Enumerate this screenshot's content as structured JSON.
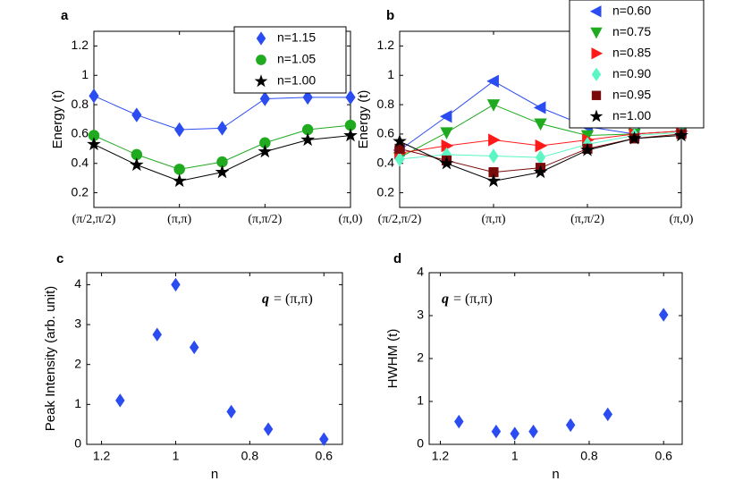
{
  "chart_data": [
    {
      "type": "line",
      "label": "a",
      "ylabel": "Energy (t)",
      "xlim": [
        0,
        6
      ],
      "xticks": [
        {
          "value": 0,
          "label": "(π/2,π/2)"
        },
        {
          "value": 2,
          "label": "(π,π)"
        },
        {
          "value": 4,
          "label": "(π,π/2)"
        },
        {
          "value": 6,
          "label": "(π,0)"
        }
      ],
      "ylim": [
        0.1,
        1.3
      ],
      "yticks": [
        0.2,
        0.4,
        0.6,
        0.8,
        1,
        1.2
      ],
      "x": [
        0,
        1,
        2,
        3,
        4,
        5,
        6
      ],
      "legend": "upper right",
      "series": [
        {
          "name": "n=1.15",
          "color": "#2b4cf0",
          "marker": "diamond",
          "values": [
            0.86,
            0.73,
            0.63,
            0.64,
            0.84,
            0.85,
            0.85
          ]
        },
        {
          "name": "n=1.05",
          "color": "#1faa1f",
          "marker": "circle",
          "values": [
            0.59,
            0.46,
            0.36,
            0.41,
            0.54,
            0.63,
            0.66
          ]
        },
        {
          "name": "n=1.00",
          "color": "#000000",
          "marker": "star",
          "values": [
            0.53,
            0.39,
            0.28,
            0.34,
            0.48,
            0.56,
            0.59
          ]
        }
      ]
    },
    {
      "type": "line",
      "label": "b",
      "ylabel": "Energy (t)",
      "xlim": [
        0,
        6
      ],
      "xticks": [
        {
          "value": 0,
          "label": "(π/2,π/2)"
        },
        {
          "value": 2,
          "label": "(π,π)"
        },
        {
          "value": 4,
          "label": "(π,π/2)"
        },
        {
          "value": 6,
          "label": "(π,0)"
        }
      ],
      "ylim": [
        0.1,
        1.3
      ],
      "yticks": [
        0.2,
        0.4,
        0.6,
        0.8,
        1,
        1.2
      ],
      "x": [
        0,
        1,
        2,
        3,
        4,
        5,
        6
      ],
      "legend": "outside upper right",
      "series": [
        {
          "name": "n=0.60",
          "color": "#2b4cf0",
          "marker": "triangle-left",
          "values": [
            0.49,
            0.72,
            0.96,
            0.78,
            0.65,
            0.6,
            0.62
          ]
        },
        {
          "name": "n=0.75",
          "color": "#1faa1f",
          "marker": "triangle-down",
          "values": [
            0.44,
            0.61,
            0.8,
            0.67,
            0.59,
            0.6,
            0.62
          ]
        },
        {
          "name": "n=0.85",
          "color": "#ff1a1a",
          "marker": "triangle-right",
          "values": [
            0.47,
            0.52,
            0.56,
            0.52,
            0.56,
            0.6,
            0.62
          ]
        },
        {
          "name": "n=0.90",
          "color": "#5cf5c4",
          "marker": "diamond",
          "values": [
            0.43,
            0.46,
            0.45,
            0.44,
            0.53,
            0.59,
            0.61
          ]
        },
        {
          "name": "n=0.95",
          "color": "#7a0a0a",
          "marker": "square",
          "values": [
            0.5,
            0.42,
            0.34,
            0.37,
            0.5,
            0.57,
            0.6
          ]
        },
        {
          "name": "n=1.00",
          "color": "#000000",
          "marker": "star",
          "values": [
            0.55,
            0.4,
            0.28,
            0.34,
            0.49,
            0.57,
            0.59
          ]
        }
      ]
    },
    {
      "type": "scatter",
      "label": "c",
      "xlabel": "n",
      "ylabel": "Peak Intensity (arb. unit)",
      "annotation": {
        "symbol": "q",
        "text": "= (π,π)"
      },
      "xlim": [
        1.24,
        0.55
      ],
      "xticks": [
        1.2,
        1,
        0.8,
        0.6
      ],
      "ylim": [
        0,
        4.3
      ],
      "yticks": [
        0,
        1,
        2,
        3,
        4
      ],
      "x": [
        1.15,
        1.05,
        1.0,
        0.95,
        0.85,
        0.75,
        0.6
      ],
      "series": [
        {
          "color": "#2b4cf0",
          "marker": "diamond",
          "values": [
            1.1,
            2.75,
            4.0,
            2.43,
            0.82,
            0.38,
            0.13
          ]
        }
      ]
    },
    {
      "type": "scatter",
      "label": "d",
      "xlabel": "n",
      "ylabel": "HWHM (t)",
      "annotation": {
        "symbol": "q",
        "text": "= (π,π)"
      },
      "xlim": [
        1.23,
        0.55
      ],
      "xticks": [
        1.2,
        1,
        0.8,
        0.6
      ],
      "ylim": [
        0,
        4
      ],
      "yticks": [
        0,
        1,
        2,
        3,
        4
      ],
      "x": [
        1.15,
        1.05,
        1.0,
        0.95,
        0.85,
        0.75,
        0.6
      ],
      "series": [
        {
          "color": "#2b4cf0",
          "marker": "diamond",
          "values": [
            0.53,
            0.3,
            0.25,
            0.3,
            0.45,
            0.7,
            3.02
          ]
        }
      ]
    }
  ]
}
